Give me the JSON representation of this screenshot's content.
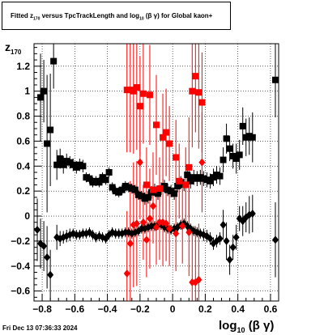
{
  "title": {
    "prefix": "Fitted",
    "z": "z",
    "z_sub": "170",
    "middle": "versus TpcTrackLength and log",
    "log_sub": "10",
    "bg": "(β γ)",
    "suffix": "for Global kaon+"
  },
  "footer": "Fri Dec 13 07:36:33 2024",
  "y_label": {
    "main": "z",
    "sub": "170"
  },
  "x_label": {
    "main": "log",
    "sub": "10",
    "tail": "(β γ)"
  },
  "colors": {
    "black": "#000000",
    "red": "#ff0000",
    "grid": "#000000"
  },
  "chart_data": {
    "type": "scatter",
    "xlim": [
      -0.85,
      0.65
    ],
    "ylim": [
      -0.68,
      1.38
    ],
    "grid": true,
    "x_ticks": [
      -0.8,
      -0.6,
      -0.4,
      -0.2,
      0,
      0.2,
      0.4,
      0.6
    ],
    "x_tick_labels": [
      "−0.8",
      "−0.6",
      "−0.4",
      "−0.2",
      "0",
      "0.2",
      "0.4",
      "0.6"
    ],
    "y_ticks": [
      -0.6,
      -0.4,
      -0.2,
      0,
      0.2,
      0.4,
      0.6,
      0.8,
      1,
      1.2
    ],
    "y_tick_labels": [
      "−0.6",
      "−0.4",
      "−0.2",
      "0",
      "0.2",
      "0.4",
      "0.6",
      "0.8",
      "1",
      "1.2"
    ],
    "series": [
      {
        "marker": "square",
        "color": "#000000",
        "points": [
          [
            -0.81,
            0.95,
            0.35
          ],
          [
            -0.79,
            1.0,
            0.25
          ],
          [
            -0.77,
            0.58,
            0.55
          ],
          [
            -0.75,
            0.69,
            0.45
          ],
          [
            -0.73,
            1.24,
            0.22
          ],
          [
            -0.71,
            0.41,
            0.12
          ],
          [
            -0.69,
            0.46,
            0.08
          ],
          [
            -0.67,
            0.41,
            0.07
          ],
          [
            -0.65,
            0.44,
            0.06
          ],
          [
            -0.63,
            0.43,
            0.05
          ],
          [
            -0.61,
            0.41,
            0.05
          ],
          [
            -0.59,
            0.39,
            0.05
          ],
          [
            -0.57,
            0.41,
            0.05
          ],
          [
            -0.55,
            0.4,
            0.05
          ],
          [
            -0.53,
            0.31,
            0.04
          ],
          [
            -0.51,
            0.3,
            0.04
          ],
          [
            -0.49,
            0.27,
            0.04
          ],
          [
            -0.47,
            0.28,
            0.04
          ],
          [
            -0.45,
            0.27,
            0.04
          ],
          [
            -0.43,
            0.31,
            0.04
          ],
          [
            -0.41,
            0.29,
            0.04
          ],
          [
            -0.39,
            0.35,
            0.04
          ],
          [
            -0.37,
            0.23,
            0.04
          ],
          [
            -0.35,
            0.2,
            0.04
          ],
          [
            -0.33,
            0.19,
            0.04
          ],
          [
            -0.31,
            0.21,
            0.04
          ],
          [
            -0.29,
            0.24,
            0.04
          ],
          [
            -0.27,
            0.23,
            0.04
          ],
          [
            -0.25,
            0.22,
            0.04
          ],
          [
            -0.23,
            0.21,
            0.04
          ],
          [
            -0.21,
            0.17,
            0.04
          ],
          [
            -0.19,
            0.16,
            0.04
          ],
          [
            -0.17,
            0.14,
            0.05
          ],
          [
            -0.15,
            0.15,
            0.05
          ],
          [
            -0.13,
            0.19,
            0.05
          ],
          [
            -0.11,
            0.21,
            0.05
          ],
          [
            -0.09,
            0.18,
            0.05
          ],
          [
            -0.07,
            0.22,
            0.05
          ],
          [
            -0.05,
            0.24,
            0.05
          ],
          [
            -0.03,
            0.21,
            0.05
          ],
          [
            -0.01,
            0.2,
            0.05
          ],
          [
            0.01,
            0.18,
            0.05
          ],
          [
            0.03,
            0.24,
            0.05
          ],
          [
            0.05,
            0.27,
            0.05
          ],
          [
            0.07,
            0.25,
            0.05
          ],
          [
            0.09,
            0.33,
            0.06
          ],
          [
            0.11,
            0.28,
            0.06
          ],
          [
            0.13,
            0.31,
            0.06
          ],
          [
            0.15,
            0.3,
            0.06
          ],
          [
            0.17,
            0.31,
            0.06
          ],
          [
            0.19,
            0.3,
            0.06
          ],
          [
            0.21,
            0.29,
            0.06
          ],
          [
            0.23,
            0.28,
            0.06
          ],
          [
            0.25,
            0.31,
            0.07
          ],
          [
            0.27,
            0.33,
            0.07
          ],
          [
            0.29,
            0.32,
            0.07
          ],
          [
            0.31,
            0.45,
            0.1
          ],
          [
            0.33,
            0.62,
            0.12
          ],
          [
            0.35,
            0.54,
            0.1
          ],
          [
            0.37,
            0.48,
            0.1
          ],
          [
            0.39,
            0.46,
            0.12
          ],
          [
            0.41,
            0.49,
            0.12
          ],
          [
            0.43,
            0.72,
            0.15
          ],
          [
            0.45,
            0.63,
            0.15
          ],
          [
            0.47,
            0.64,
            0.15
          ],
          [
            0.49,
            0.63,
            0.2
          ],
          [
            0.63,
            1.09,
            0.3
          ]
        ]
      },
      {
        "marker": "diamond",
        "color": "#000000",
        "points": [
          [
            -0.83,
            -0.11,
            0.25
          ],
          [
            -0.81,
            -0.22,
            0.2
          ],
          [
            -0.79,
            -0.24,
            0.2
          ],
          [
            -0.77,
            -0.33,
            0.25
          ],
          [
            -0.75,
            -0.47,
            0.2
          ],
          [
            -0.71,
            -0.17,
            0.1
          ],
          [
            -0.69,
            -0.18,
            0.06
          ],
          [
            -0.67,
            -0.17,
            0.05
          ],
          [
            -0.65,
            -0.16,
            0.05
          ],
          [
            -0.63,
            -0.15,
            0.05
          ],
          [
            -0.61,
            -0.14,
            0.04
          ],
          [
            -0.59,
            -0.15,
            0.04
          ],
          [
            -0.57,
            -0.15,
            0.04
          ],
          [
            -0.55,
            -0.14,
            0.04
          ],
          [
            -0.53,
            -0.14,
            0.04
          ],
          [
            -0.51,
            -0.13,
            0.04
          ],
          [
            -0.49,
            -0.15,
            0.04
          ],
          [
            -0.47,
            -0.17,
            0.04
          ],
          [
            -0.45,
            -0.16,
            0.04
          ],
          [
            -0.43,
            -0.17,
            0.04
          ],
          [
            -0.41,
            -0.18,
            0.04
          ],
          [
            -0.39,
            -0.15,
            0.04
          ],
          [
            -0.37,
            -0.13,
            0.04
          ],
          [
            -0.35,
            -0.14,
            0.04
          ],
          [
            -0.33,
            -0.14,
            0.04
          ],
          [
            -0.31,
            -0.14,
            0.04
          ],
          [
            -0.29,
            -0.13,
            0.04
          ],
          [
            -0.27,
            -0.13,
            0.04
          ],
          [
            -0.25,
            -0.14,
            0.04
          ],
          [
            -0.23,
            -0.13,
            0.04
          ],
          [
            -0.21,
            -0.12,
            0.04
          ],
          [
            -0.19,
            -0.1,
            0.04
          ],
          [
            -0.17,
            -0.1,
            0.04
          ],
          [
            -0.15,
            -0.09,
            0.04
          ],
          [
            -0.13,
            -0.08,
            0.04
          ],
          [
            -0.11,
            -0.08,
            0.04
          ],
          [
            -0.09,
            -0.07,
            0.04
          ],
          [
            -0.07,
            -0.07,
            0.04
          ],
          [
            -0.05,
            -0.09,
            0.04
          ],
          [
            -0.03,
            -0.1,
            0.04
          ],
          [
            -0.01,
            -0.11,
            0.04
          ],
          [
            0.01,
            -0.1,
            0.04
          ],
          [
            0.03,
            -0.09,
            0.04
          ],
          [
            0.05,
            -0.07,
            0.04
          ],
          [
            0.07,
            -0.06,
            0.04
          ],
          [
            0.09,
            -0.08,
            0.04
          ],
          [
            0.11,
            -0.1,
            0.04
          ],
          [
            0.13,
            -0.12,
            0.04
          ],
          [
            0.15,
            -0.13,
            0.04
          ],
          [
            0.17,
            -0.14,
            0.04
          ],
          [
            0.19,
            -0.15,
            0.05
          ],
          [
            0.21,
            -0.16,
            0.05
          ],
          [
            0.23,
            -0.18,
            0.05
          ],
          [
            0.25,
            -0.22,
            0.05
          ],
          [
            0.27,
            -0.2,
            0.05
          ],
          [
            0.29,
            -0.18,
            0.05
          ],
          [
            0.31,
            -0.07,
            0.12
          ],
          [
            0.33,
            -0.2,
            0.15
          ],
          [
            0.35,
            -0.35,
            0.12
          ],
          [
            0.37,
            -0.25,
            0.1
          ],
          [
            0.39,
            -0.17,
            0.1
          ],
          [
            0.41,
            -0.02,
            0.1
          ],
          [
            0.43,
            -0.04,
            0.12
          ],
          [
            0.45,
            -0.01,
            0.12
          ],
          [
            0.47,
            0.01,
            0.15
          ],
          [
            0.49,
            0.02,
            0.15
          ],
          [
            0.63,
            -0.19,
            0.3
          ]
        ]
      },
      {
        "marker": "square",
        "color": "#ff0000",
        "points": [
          [
            -0.28,
            1.01,
            0.5
          ],
          [
            -0.26,
            1.01,
            0.5
          ],
          [
            -0.24,
            1.0,
            0.5
          ],
          [
            -0.22,
            1.03,
            0.5
          ],
          [
            -0.2,
            0.88,
            0.4
          ],
          [
            -0.18,
            0.98,
            0.4
          ],
          [
            -0.16,
            0.25,
            0.3
          ],
          [
            -0.14,
            0.97,
            0.4
          ],
          [
            -0.12,
            0.21,
            0.3
          ],
          [
            -0.1,
            0.73,
            0.4
          ],
          [
            -0.08,
            0.22,
            0.25
          ],
          [
            -0.06,
            0.63,
            0.35
          ],
          [
            -0.04,
            0.67,
            0.35
          ],
          [
            -0.02,
            0.58,
            0.3
          ],
          [
            0.02,
            0.47,
            0.3
          ],
          [
            0.04,
            0.28,
            0.3
          ],
          [
            0.08,
            0.25,
            0.3
          ],
          [
            0.1,
            0.39,
            0.4
          ],
          [
            0.12,
            1.0,
            0.45
          ],
          [
            0.14,
            1.12,
            0.45
          ],
          [
            0.16,
            0.99,
            0.45
          ],
          [
            0.18,
            0.91,
            0.4
          ]
        ]
      },
      {
        "marker": "diamond",
        "color": "#ff0000",
        "points": [
          [
            -0.28,
            -0.46,
            0.5
          ],
          [
            -0.26,
            -0.22,
            0.5
          ],
          [
            -0.24,
            -0.07,
            0.5
          ],
          [
            -0.22,
            -0.06,
            0.5
          ],
          [
            -0.2,
            0.43,
            0.45
          ],
          [
            -0.18,
            -0.05,
            0.3
          ],
          [
            -0.16,
            -0.19,
            0.3
          ],
          [
            -0.14,
            -0.02,
            0.4
          ],
          [
            -0.12,
            0.08,
            0.3
          ],
          [
            -0.1,
            -0.09,
            0.3
          ],
          [
            -0.08,
            -0.05,
            0.3
          ],
          [
            -0.06,
            -0.05,
            0.35
          ],
          [
            -0.04,
            -0.06,
            0.3
          ],
          [
            -0.02,
            -0.1,
            0.3
          ],
          [
            0.02,
            -0.14,
            0.3
          ],
          [
            0.06,
            -0.08,
            0.3
          ],
          [
            0.1,
            -0.13,
            0.35
          ],
          [
            0.12,
            -0.53,
            0.45
          ],
          [
            0.14,
            -0.53,
            0.45
          ],
          [
            0.16,
            -0.51,
            0.45
          ],
          [
            0.18,
            0.43,
            0.4
          ]
        ]
      }
    ]
  }
}
